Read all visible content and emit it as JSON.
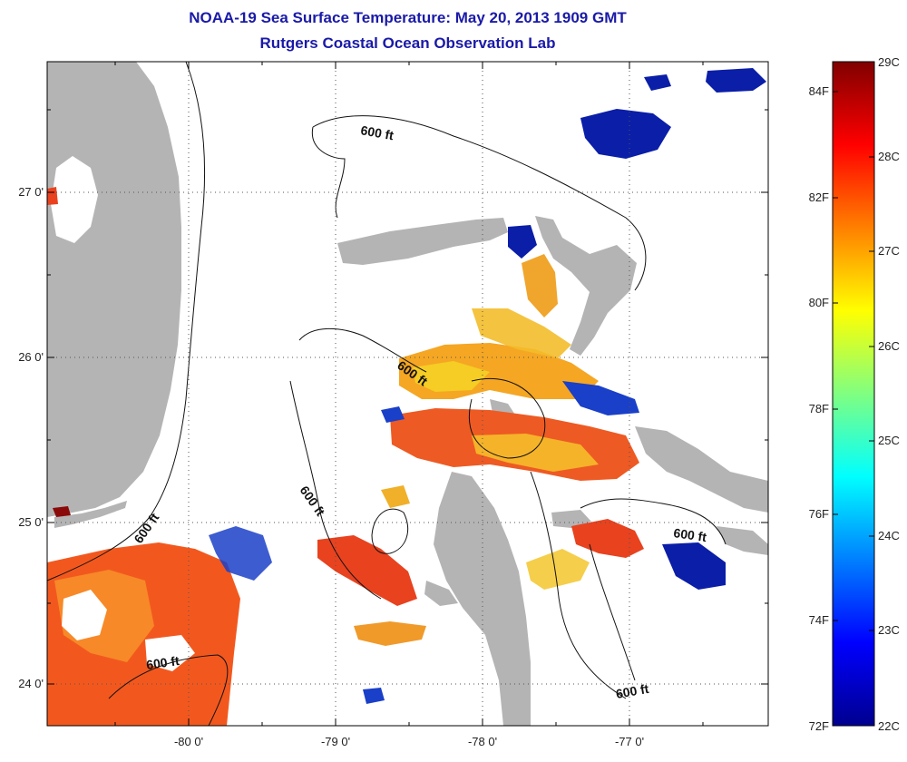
{
  "header": {
    "title": "NOAA-19 Sea Surface Temperature:  May 20, 2013 1909 GMT",
    "subtitle": "Rutgers Coastal Ocean Observation Lab"
  },
  "map": {
    "lat_labels": [
      "27 0'",
      "26 0'",
      "25 0'",
      "24 0'"
    ],
    "lon_labels": [
      "-80 0'",
      "-79 0'",
      "-78 0'",
      "-77 0'"
    ],
    "contour_label": "600 ft",
    "contour_label_alt": "600 ft",
    "land_color": "#b4b4b4",
    "cloud_color": "#ffffff"
  },
  "colorbar": {
    "celsius_labels": [
      "29C",
      "28C",
      "27C",
      "26C",
      "25C",
      "24C",
      "23C",
      "22C"
    ],
    "fahrenheit_labels": [
      "84F",
      "82F",
      "80F",
      "78F",
      "76F",
      "74F",
      "72F"
    ],
    "range_c": [
      22,
      29
    ],
    "colormap": "jet"
  }
}
